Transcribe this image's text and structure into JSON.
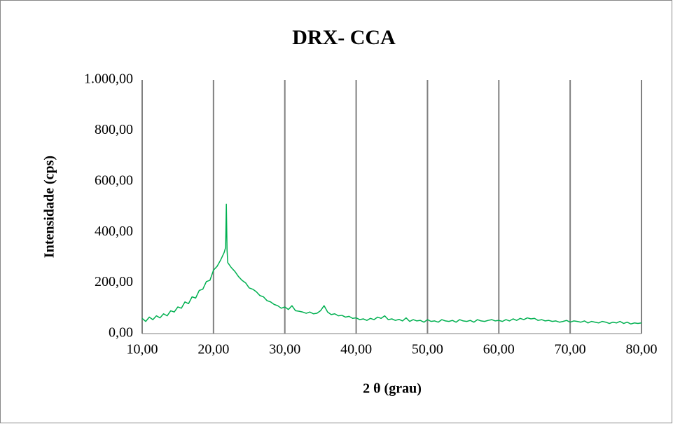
{
  "chart_data": {
    "type": "line",
    "title": "DRX- CCA",
    "x_label": "2 θ (grau)",
    "y_label": "Intensidade (cps)",
    "x": [
      10,
      10.5,
      11,
      11.5,
      12,
      12.5,
      13,
      13.5,
      14,
      14.5,
      15,
      15.5,
      16,
      16.5,
      17,
      17.5,
      18,
      18.5,
      19,
      19.5,
      20,
      20.5,
      21,
      21.5,
      21.7,
      21.8,
      21.9,
      22,
      22.5,
      23,
      23.5,
      24,
      24.5,
      25,
      25.5,
      26,
      26.5,
      27,
      27.5,
      28,
      28.5,
      29,
      29.5,
      30,
      30.5,
      31,
      31.5,
      32,
      32.5,
      33,
      33.5,
      34,
      34.5,
      35,
      35.5,
      36,
      36.5,
      37,
      37.5,
      38,
      38.5,
      39,
      39.5,
      40,
      40.5,
      41,
      41.5,
      42,
      42.5,
      43,
      43.5,
      44,
      44.5,
      45,
      45.5,
      46,
      46.5,
      47,
      47.5,
      48,
      48.5,
      49,
      49.5,
      50,
      50.5,
      51,
      51.5,
      52,
      52.5,
      53,
      53.5,
      54,
      54.5,
      55,
      55.5,
      56,
      56.5,
      57,
      57.5,
      58,
      58.5,
      59,
      59.5,
      60,
      60.5,
      61,
      61.5,
      62,
      62.5,
      63,
      63.5,
      64,
      64.5,
      65,
      65.5,
      66,
      66.5,
      67,
      67.5,
      68,
      68.5,
      69,
      69.5,
      70,
      70.5,
      71,
      71.5,
      72,
      72.5,
      73,
      73.5,
      74,
      74.5,
      75,
      75.5,
      76,
      76.5,
      77,
      77.5,
      78,
      78.5,
      79,
      79.5,
      80
    ],
    "series": [
      {
        "color": "#00b050",
        "values": [
          60,
          48,
          65,
          55,
          70,
          62,
          78,
          70,
          90,
          85,
          105,
          100,
          125,
          118,
          145,
          140,
          170,
          175,
          205,
          210,
          250,
          265,
          290,
          320,
          340,
          510,
          330,
          280,
          260,
          245,
          225,
          210,
          200,
          180,
          175,
          165,
          150,
          145,
          130,
          125,
          115,
          110,
          100,
          105,
          95,
          110,
          90,
          88,
          85,
          80,
          85,
          78,
          80,
          90,
          110,
          85,
          75,
          78,
          70,
          72,
          65,
          68,
          60,
          62,
          55,
          58,
          52,
          60,
          55,
          65,
          60,
          70,
          55,
          58,
          52,
          56,
          50,
          62,
          48,
          55,
          50,
          52,
          45,
          55,
          48,
          50,
          45,
          55,
          50,
          48,
          52,
          45,
          55,
          50,
          48,
          52,
          45,
          55,
          50,
          48,
          52,
          55,
          50,
          52,
          48,
          55,
          50,
          58,
          52,
          60,
          55,
          62,
          58,
          60,
          52,
          55,
          50,
          52,
          48,
          50,
          45,
          48,
          52,
          45,
          50,
          48,
          45,
          50,
          42,
          48,
          45,
          42,
          48,
          45,
          40,
          45,
          42,
          48,
          40,
          45,
          38,
          42,
          40,
          42
        ]
      }
    ],
    "xlim": [
      10,
      80
    ],
    "ylim": [
      0,
      1000
    ],
    "xticks": [
      {
        "value": 10,
        "label": "10,00"
      },
      {
        "value": 20,
        "label": "20,00"
      },
      {
        "value": 30,
        "label": "30,00"
      },
      {
        "value": 40,
        "label": "40,00"
      },
      {
        "value": 50,
        "label": "50,00"
      },
      {
        "value": 60,
        "label": "60,00"
      },
      {
        "value": 70,
        "label": "70,00"
      },
      {
        "value": 80,
        "label": "80,00"
      }
    ],
    "yticks": [
      {
        "value": 0,
        "label": "0,00"
      },
      {
        "value": 200,
        "label": "200,00"
      },
      {
        "value": 400,
        "label": "400,00"
      },
      {
        "value": 600,
        "label": "600,00"
      },
      {
        "value": 800,
        "label": "800,00"
      },
      {
        "value": 1000,
        "label": "1.000,00"
      }
    ],
    "grid": "x"
  }
}
